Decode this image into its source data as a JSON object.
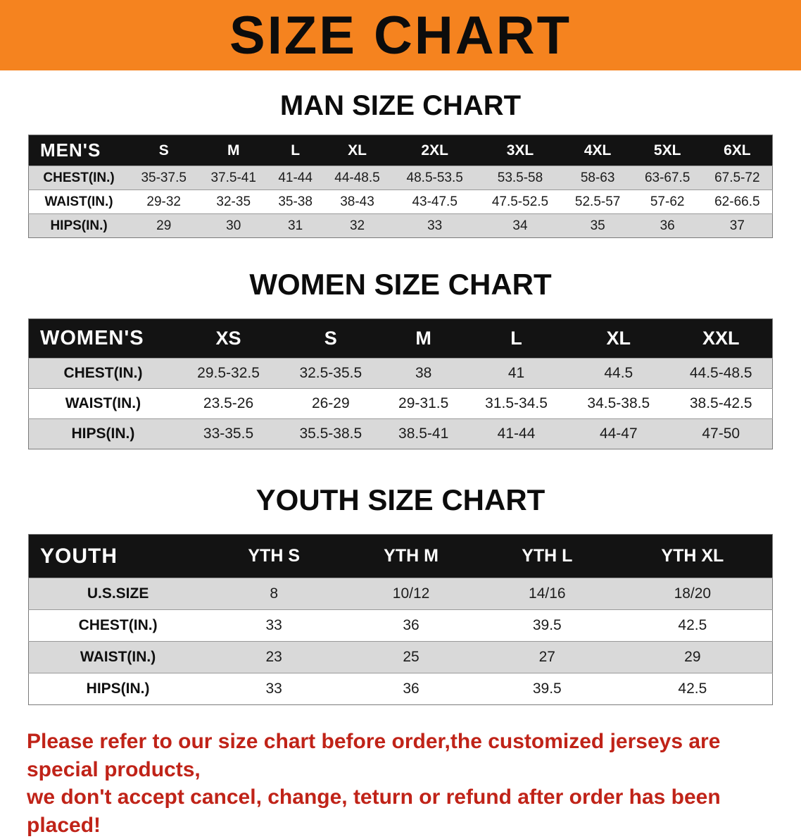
{
  "banner": {
    "title": "SIZE CHART"
  },
  "colors": {
    "banner_bg": "#f5831f",
    "disclaimer_text": "#c02318",
    "header_bg": "#131313",
    "row_stripe": "#d9d9d9"
  },
  "men": {
    "heading": "MAN SIZE CHART",
    "columns": [
      "MEN'S",
      "S",
      "M",
      "L",
      "XL",
      "2XL",
      "3XL",
      "4XL",
      "5XL",
      "6XL"
    ],
    "rows": [
      {
        "label": "CHEST(IN.)",
        "values": [
          "35-37.5",
          "37.5-41",
          "41-44",
          "44-48.5",
          "48.5-53.5",
          "53.5-58",
          "58-63",
          "63-67.5",
          "67.5-72"
        ]
      },
      {
        "label": "WAIST(IN.)",
        "values": [
          "29-32",
          "32-35",
          "35-38",
          "38-43",
          "43-47.5",
          "47.5-52.5",
          "52.5-57",
          "57-62",
          "62-66.5"
        ]
      },
      {
        "label": "HIPS(IN.)",
        "values": [
          "29",
          "30",
          "31",
          "32",
          "33",
          "34",
          "35",
          "36",
          "37"
        ]
      }
    ]
  },
  "women": {
    "heading": "WOMEN SIZE CHART",
    "columns": [
      "WOMEN'S",
      "XS",
      "S",
      "M",
      "L",
      "XL",
      "XXL"
    ],
    "rows": [
      {
        "label": "CHEST(IN.)",
        "values": [
          "29.5-32.5",
          "32.5-35.5",
          "38",
          "41",
          "44.5",
          "44.5-48.5"
        ]
      },
      {
        "label": "WAIST(IN.)",
        "values": [
          "23.5-26",
          "26-29",
          "29-31.5",
          "31.5-34.5",
          "34.5-38.5",
          "38.5-42.5"
        ]
      },
      {
        "label": "HIPS(IN.)",
        "values": [
          "33-35.5",
          "35.5-38.5",
          "38.5-41",
          "41-44",
          "44-47",
          "47-50"
        ]
      }
    ]
  },
  "youth": {
    "heading": "YOUTH SIZE CHART",
    "columns": [
      "YOUTH",
      "YTH S",
      "YTH M",
      "YTH L",
      "YTH XL"
    ],
    "rows": [
      {
        "label": "U.S.SIZE",
        "values": [
          "8",
          "10/12",
          "14/16",
          "18/20"
        ]
      },
      {
        "label": "CHEST(IN.)",
        "values": [
          "33",
          "36",
          "39.5",
          "42.5"
        ]
      },
      {
        "label": "WAIST(IN.)",
        "values": [
          "23",
          "25",
          "27",
          "29"
        ]
      },
      {
        "label": "HIPS(IN.)",
        "values": [
          "33",
          "36",
          "39.5",
          "42.5"
        ]
      }
    ]
  },
  "disclaimer": {
    "line1": "Please refer to our size chart before order,the customized jerseys are special products,",
    "line2": "we don't accept cancel, change, teturn or refund after order has been placed!"
  }
}
